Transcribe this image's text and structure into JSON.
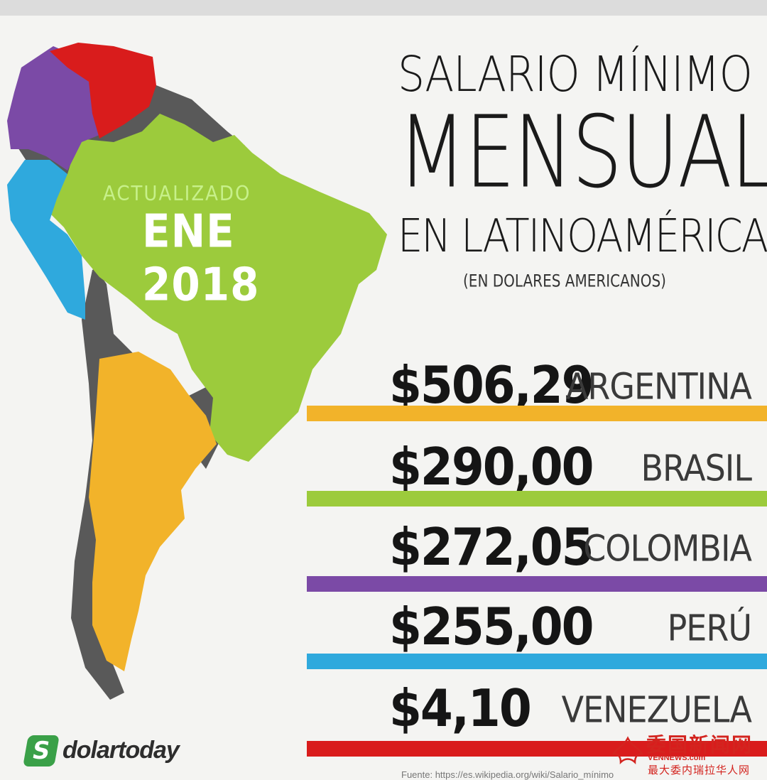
{
  "title_line1": "SALARIO MÍNIMO",
  "title_line2": "MENSUAL",
  "title_line3": "EN LATINOAMÉRICA",
  "subtitle": "(EN DOLARES AMERICANOS)",
  "map": {
    "overlay_line1": "ACTUALIZADO",
    "overlay_line2": "ENE 2018"
  },
  "rows": [
    {
      "value_label": "$506,29",
      "country": "ARGENTINA"
    },
    {
      "value_label": "$290,00",
      "country": "BRASIL"
    },
    {
      "value_label": "$272,05",
      "country": "COLOMBIA"
    },
    {
      "value_label": "$255,00",
      "country": "PERÚ"
    },
    {
      "value_label": "$4,10",
      "country": "VENEZUELA"
    }
  ],
  "colors": {
    "argentina": "#f2b32a",
    "brasil": "#9ccb3c",
    "colombia": "#7b4aa6",
    "peru": "#2fa9dd",
    "venezuela": "#d91c1c",
    "other": "#595959"
  },
  "logo": {
    "icon": "S",
    "text": "dolartoday"
  },
  "source": "Fuente: https://es.wikipedia.org/wiki/Salario_mínimo",
  "watermark": {
    "line1": "委国新闻网",
    "line2": "VENNEWS.com",
    "line3": "最大委内瑞拉华人网"
  },
  "chart_data": {
    "type": "bar",
    "title": "SALARIO MÍNIMO MENSUAL EN LATINOAMÉRICA",
    "subtitle": "(EN DOLARES AMERICANOS)",
    "categories": [
      "ARGENTINA",
      "BRASIL",
      "COLOMBIA",
      "PERÚ",
      "VENEZUELA"
    ],
    "values": [
      506.29,
      290.0,
      272.05,
      255.0,
      4.1
    ],
    "orientation": "horizontal",
    "colors": [
      "#f2b32a",
      "#9ccb3c",
      "#7b4aa6",
      "#2fa9dd",
      "#d91c1c"
    ]
  }
}
